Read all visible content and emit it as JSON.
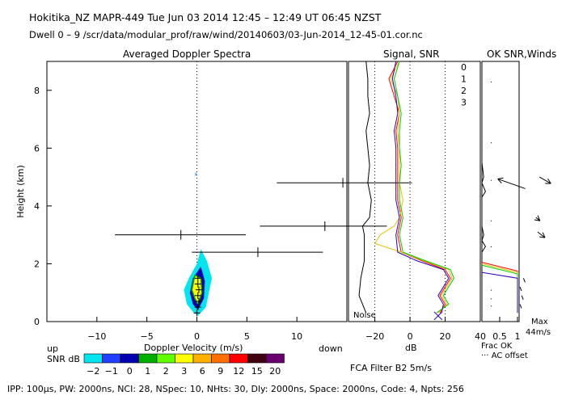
{
  "header": {
    "line1": "Hokitika_NZ   MAPR-449   Tue Jun 03 2014 12:45 – 12:49 UT 06:45 NZST",
    "line2": "Dwell   0 –   9   /scr/data/modular_prof/raw/wind/20140603/03-Jun-2014_12-45-01.cor.nc"
  },
  "panels": {
    "spectra_title": "Averaged Doppler Spectra",
    "snr_title": "Signal, SNR",
    "ok_title": "OK SNR,Winds"
  },
  "labels": {
    "up": "up",
    "down": "down",
    "snr_db": "SNR dB",
    "noise": "Noise",
    "db": "dB",
    "frac_ok": "Frac OK",
    "ac_offset": "··· AC offset",
    "max": "Max",
    "max_speed": "44m/s",
    "fca_filter": "FCA Filter B2   5m/s",
    "footer": "IPP: 100μs,  PW: 2000ns,  NCI:  28,  NSpec: 10,  NHts: 30,  Dly: 2000ns,  Space: 2000ns,  Code: 4,  Npts: 256"
  },
  "colorbar": {
    "labels": [
      "−2",
      "−1",
      "0",
      "1",
      "2",
      "3",
      "6",
      "9",
      "12",
      "15",
      "20"
    ],
    "colors": [
      "#00e5ee",
      "#2040ff",
      "#0000b0",
      "#00b000",
      "#60ff00",
      "#ffff00",
      "#ffb000",
      "#ff7000",
      "#ff0000",
      "#400010",
      "#6a0070"
    ]
  },
  "chart_data": [
    {
      "type": "contour",
      "title": "Averaged Doppler Spectra",
      "xlabel": "Doppler Velocity (m/s)",
      "ylabel": "Height (km)",
      "xlim": [
        -15,
        15
      ],
      "ylim": [
        0,
        9
      ],
      "xticks": [
        -10,
        -5,
        0,
        5,
        10
      ],
      "xtick_labels": [
        "−10",
        "−5",
        "0",
        "5",
        "10"
      ],
      "yticks": [
        0,
        2,
        4,
        6,
        8
      ],
      "spectral_peaks": [
        {
          "height": 0.3,
          "velocity": 0.0
        },
        {
          "height": 0.5,
          "velocity": 0.1
        },
        {
          "height": 0.7,
          "velocity": 0.2
        },
        {
          "height": 0.9,
          "velocity": 0.1
        },
        {
          "height": 1.1,
          "velocity": 0.2
        },
        {
          "height": 1.3,
          "velocity": 0.1
        },
        {
          "height": 1.5,
          "velocity": 0.1
        }
      ],
      "error_bars": [
        {
          "height": 2.4,
          "center": 6.1,
          "left": -0.5,
          "right": 12.6
        },
        {
          "height": 3.0,
          "center": -1.6,
          "left": -8.2,
          "right": 4.9
        },
        {
          "height": 3.3,
          "center": 12.8,
          "left": 6.3,
          "right": 19.0
        },
        {
          "height": 4.8,
          "center": 14.6,
          "left": 8.0,
          "right": 21.5
        }
      ],
      "contour_outer": [
        [
          0.1,
          0.2
        ],
        [
          0.9,
          0.5
        ],
        [
          1.2,
          1.0
        ],
        [
          1.5,
          1.5
        ],
        [
          1.0,
          2.1
        ],
        [
          0.4,
          2.5
        ],
        [
          0.0,
          2.0
        ],
        [
          -0.8,
          1.5
        ],
        [
          -1.3,
          1.1
        ],
        [
          -1.0,
          0.6
        ],
        [
          -0.3,
          0.3
        ]
      ],
      "contour_mid": [
        [
          0.1,
          0.4
        ],
        [
          0.7,
          0.8
        ],
        [
          0.8,
          1.4
        ],
        [
          0.4,
          1.9
        ],
        [
          -0.4,
          1.5
        ],
        [
          -0.7,
          1.0
        ],
        [
          -0.4,
          0.6
        ]
      ],
      "contour_core": [
        [
          0.1,
          0.6
        ],
        [
          0.5,
          1.0
        ],
        [
          0.4,
          1.5
        ],
        [
          -0.2,
          1.6
        ],
        [
          -0.5,
          1.1
        ],
        [
          -0.2,
          0.8
        ]
      ]
    },
    {
      "type": "line",
      "title": "Signal, SNR",
      "xlabel": "dB",
      "xlim": [
        -35,
        40
      ],
      "xticks": [
        -20,
        0,
        20,
        40
      ],
      "xtick_labels": [
        "−20",
        "0",
        "20",
        "40"
      ],
      "ylim": [
        0,
        9
      ],
      "legend": [
        "0",
        "1",
        "2",
        "3"
      ],
      "legend_colors": [
        "#ff0000",
        "#e8c000",
        "#00cc00",
        "#3000c0"
      ],
      "series": [
        {
          "name": "noise",
          "color": "#000000",
          "points": [
            [
              -25,
              0.3
            ],
            [
              -29,
              0.9
            ],
            [
              -28,
              1.5
            ],
            [
              -26,
              2.1
            ],
            [
              -26,
              3.0
            ],
            [
              -27,
              3.3
            ],
            [
              -23,
              3.6
            ],
            [
              -22,
              4.2
            ],
            [
              -24,
              4.8
            ],
            [
              -23,
              5.4
            ],
            [
              -24,
              6.0
            ],
            [
              -25,
              6.6
            ],
            [
              -23,
              7.2
            ],
            [
              -24,
              7.8
            ],
            [
              -24,
              8.4
            ],
            [
              -25,
              9.0
            ]
          ]
        },
        {
          "name": "beam-0",
          "color": "#ff0000",
          "points": [
            [
              17,
              0.3
            ],
            [
              20,
              0.6
            ],
            [
              17,
              0.9
            ],
            [
              20,
              1.2
            ],
            [
              23,
              1.5
            ],
            [
              20,
              1.8
            ],
            [
              7,
              2.1
            ],
            [
              -5,
              2.4
            ],
            [
              -7,
              3.0
            ],
            [
              -6,
              3.3
            ],
            [
              -5,
              3.6
            ],
            [
              -7,
              4.2
            ],
            [
              -7,
              4.8
            ],
            [
              -7,
              5.4
            ],
            [
              -7,
              6.0
            ],
            [
              -8,
              6.6
            ],
            [
              -6,
              7.2
            ],
            [
              -9,
              7.8
            ],
            [
              -12,
              8.4
            ],
            [
              -7,
              9.0
            ]
          ]
        },
        {
          "name": "beam-1",
          "color": "#e8c000",
          "points": [
            [
              16,
              0.3
            ],
            [
              21,
              0.6
            ],
            [
              18,
              0.9
            ],
            [
              21,
              1.2
            ],
            [
              24,
              1.5
            ],
            [
              22,
              1.8
            ],
            [
              8,
              2.1
            ],
            [
              -5,
              2.4
            ],
            [
              -20,
              2.7
            ],
            [
              -17,
              3.0
            ],
            [
              -9,
              3.3
            ],
            [
              -6,
              3.6
            ],
            [
              -4,
              4.2
            ],
            [
              -6,
              4.8
            ],
            [
              -6,
              5.4
            ],
            [
              -6,
              6.0
            ],
            [
              -7,
              6.6
            ],
            [
              -6,
              7.2
            ],
            [
              -7,
              7.8
            ],
            [
              -11,
              8.4
            ],
            [
              -6,
              9.0
            ]
          ]
        },
        {
          "name": "beam-2",
          "color": "#00cc00",
          "points": [
            [
              15,
              0.3
            ],
            [
              22,
              0.6
            ],
            [
              19,
              0.9
            ],
            [
              22,
              1.2
            ],
            [
              25,
              1.5
            ],
            [
              23,
              1.8
            ],
            [
              9,
              2.1
            ],
            [
              -4,
              2.4
            ],
            [
              -6,
              3.0
            ],
            [
              -5,
              3.3
            ],
            [
              -4,
              3.6
            ],
            [
              -6,
              4.2
            ],
            [
              -6,
              4.8
            ],
            [
              -5,
              5.4
            ],
            [
              -6,
              6.0
            ],
            [
              -6,
              6.6
            ],
            [
              -5,
              7.2
            ],
            [
              -7,
              7.8
            ],
            [
              -9,
              8.4
            ],
            [
              -6,
              9.0
            ]
          ]
        },
        {
          "name": "beam-3",
          "color": "#3000c0",
          "points": [
            [
              18,
              0.3
            ],
            [
              19,
              0.6
            ],
            [
              16,
              0.9
            ],
            [
              19,
              1.2
            ],
            [
              22,
              1.5
            ],
            [
              19,
              1.8
            ],
            [
              4,
              2.1
            ],
            [
              -7,
              2.4
            ],
            [
              -8,
              3.0
            ],
            [
              -7,
              3.3
            ],
            [
              -6,
              3.6
            ],
            [
              -8,
              4.2
            ],
            [
              -8,
              4.8
            ],
            [
              -8,
              5.4
            ],
            [
              -8,
              6.0
            ],
            [
              -9,
              6.6
            ],
            [
              -7,
              7.2
            ],
            [
              -8,
              7.8
            ],
            [
              -10,
              8.4
            ],
            [
              -8,
              9.0
            ]
          ]
        }
      ]
    },
    {
      "type": "line",
      "title": "OK SNR,Winds",
      "xlabel": "Frac OK",
      "xlim": [
        0,
        1
      ],
      "xticks": [
        0.5,
        1
      ],
      "xtick_labels": [
        "0.5",
        "1"
      ],
      "ylim": [
        0,
        9
      ],
      "series": [
        {
          "name": "frac-ok",
          "color": "#000000",
          "points": [
            [
              0.0,
              9.0
            ],
            [
              0.0,
              5.5
            ],
            [
              0.05,
              5.0
            ],
            [
              0.0,
              4.8
            ],
            [
              0.1,
              4.5
            ],
            [
              0.0,
              4.3
            ],
            [
              0.0,
              3.3
            ],
            [
              0.05,
              3.0
            ],
            [
              0.0,
              2.8
            ],
            [
              0.1,
              2.6
            ],
            [
              0.0,
              2.4
            ],
            [
              0.0,
              2.2
            ]
          ]
        },
        {
          "name": "ok-red",
          "color": "#ff0000",
          "points": [
            [
              0.0,
              2.05
            ],
            [
              1.0,
              1.75
            ],
            [
              1.0,
              0.3
            ]
          ]
        },
        {
          "name": "ok-yellow",
          "color": "#e8c000",
          "points": [
            [
              0.0,
              2.0
            ],
            [
              1.0,
              1.7
            ],
            [
              1.0,
              0.3
            ]
          ]
        },
        {
          "name": "ok-green",
          "color": "#00cc00",
          "points": [
            [
              0.0,
              1.95
            ],
            [
              1.0,
              1.65
            ],
            [
              1.0,
              0.3
            ]
          ]
        },
        {
          "name": "ok-blue",
          "color": "#3000c0",
          "points": [
            [
              0.0,
              1.7
            ],
            [
              1.0,
              1.5
            ],
            [
              1.0,
              0.3
            ]
          ]
        }
      ],
      "wind_barbs": [
        {
          "height": 4.6,
          "arrow": true,
          "dx": -34,
          "dy": -12,
          "bx": 1.9
        },
        {
          "height": 5.0,
          "arrow": true,
          "dx": 14,
          "dy": 8,
          "bx": 2.3
        },
        {
          "height": 3.1,
          "arrow": true,
          "dx": 9,
          "dy": 7,
          "bx": 2.25
        },
        {
          "height": 3.6,
          "arrow": true,
          "dx": 5,
          "dy": 4,
          "bx": 2.2
        },
        {
          "height": 1.5,
          "arrow": false,
          "dx": 2,
          "dy": 5,
          "bx": 1.85
        },
        {
          "height": 1.2,
          "arrow": false,
          "dx": 2,
          "dy": 5,
          "bx": 1.75
        },
        {
          "height": 0.9,
          "arrow": false,
          "dx": 2,
          "dy": 5,
          "bx": 1.8
        },
        {
          "height": 0.6,
          "arrow": false,
          "dx": 2,
          "dy": 5,
          "bx": 1.75
        }
      ]
    }
  ]
}
